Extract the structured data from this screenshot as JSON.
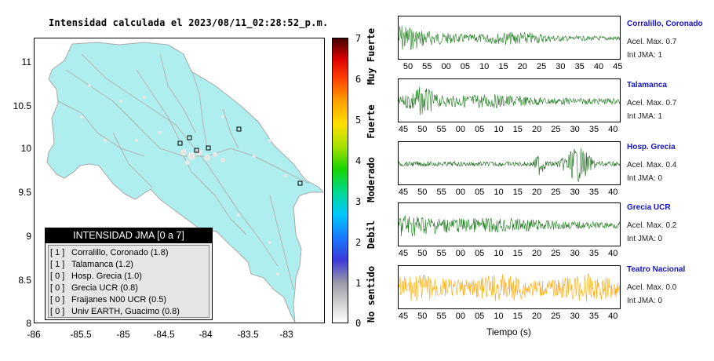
{
  "map": {
    "title": "Intensidad calculada el 2023/08/11_02:28:52_p.m.",
    "y_ticks": [
      "11",
      "10.5",
      "10",
      "9.5",
      "9",
      "8.5",
      "8"
    ],
    "x_ticks": [
      "-86",
      "-85.5",
      "-85",
      "-84.5",
      "-84",
      "-83.5",
      "-83"
    ]
  },
  "legend": {
    "header": "INTENSIDAD JMA [0 a 7]",
    "rows": [
      {
        "level": "[ 1 ]",
        "text": "Corralillo, Coronado (1.8)"
      },
      {
        "level": "[ 1 ]",
        "text": "Talamanca (1.2)"
      },
      {
        "level": "[ 0 ]",
        "text": "Hosp. Grecia (1.0)"
      },
      {
        "level": "[ 0 ]",
        "text": "Grecia UCR (0.8)"
      },
      {
        "level": "[ 0 ]",
        "text": "Fraijanes N00 UCR (0.5)"
      },
      {
        "level": "[ 0 ]",
        "text": "Univ EARTH, Guacimo (0.8)"
      }
    ]
  },
  "colorbar": {
    "ticks": [
      "7",
      "6",
      "5",
      "4",
      "3",
      "2",
      "1",
      "0"
    ],
    "labels": [
      "Muy Fuerte",
      "Fuerte",
      "Moderado",
      "Debil",
      "No sentido"
    ]
  },
  "stations": [
    {
      "name": "Corralillo, Coronado",
      "accel": "Acel. Max. 0.7",
      "int": "Int JMA: 1",
      "color": "#1a7a1a",
      "ticks": [
        "50",
        "55",
        "00",
        "05",
        "10",
        "15",
        "20",
        "25",
        "30",
        "35",
        "40",
        "45"
      ]
    },
    {
      "name": "Talamanca",
      "accel": "Acel. Max. 0.7",
      "int": "Int JMA: 1",
      "color": "#1a7a1a",
      "ticks": [
        "45",
        "50",
        "55",
        "00",
        "05",
        "10",
        "15",
        "20",
        "25",
        "30",
        "35",
        "40"
      ]
    },
    {
      "name": "Hosp. Grecia",
      "accel": "Acel. Max. 0.4",
      "int": "Int JMA: 0",
      "color": "#1a6a1a",
      "ticks": [
        "45",
        "50",
        "55",
        "00",
        "05",
        "10",
        "15",
        "20",
        "25",
        "30",
        "35",
        "40"
      ]
    },
    {
      "name": "Grecia UCR",
      "accel": "Acel. Max. 0.2",
      "int": "Int JMA: 0",
      "color": "#1a7a1a",
      "ticks": [
        "45",
        "50",
        "55",
        "00",
        "05",
        "10",
        "15",
        "20",
        "25",
        "30",
        "35",
        "40"
      ]
    },
    {
      "name": "Teatro Nacional",
      "accel": "Acel. Max. 0.0",
      "int": "Int JMA: 0",
      "color": "#ffa500",
      "ticks": [
        "45",
        "50",
        "55",
        "00",
        "05",
        "10",
        "15",
        "20",
        "25",
        "30",
        "35",
        "40"
      ]
    }
  ],
  "time_axis_label": "Tiempo (s)"
}
